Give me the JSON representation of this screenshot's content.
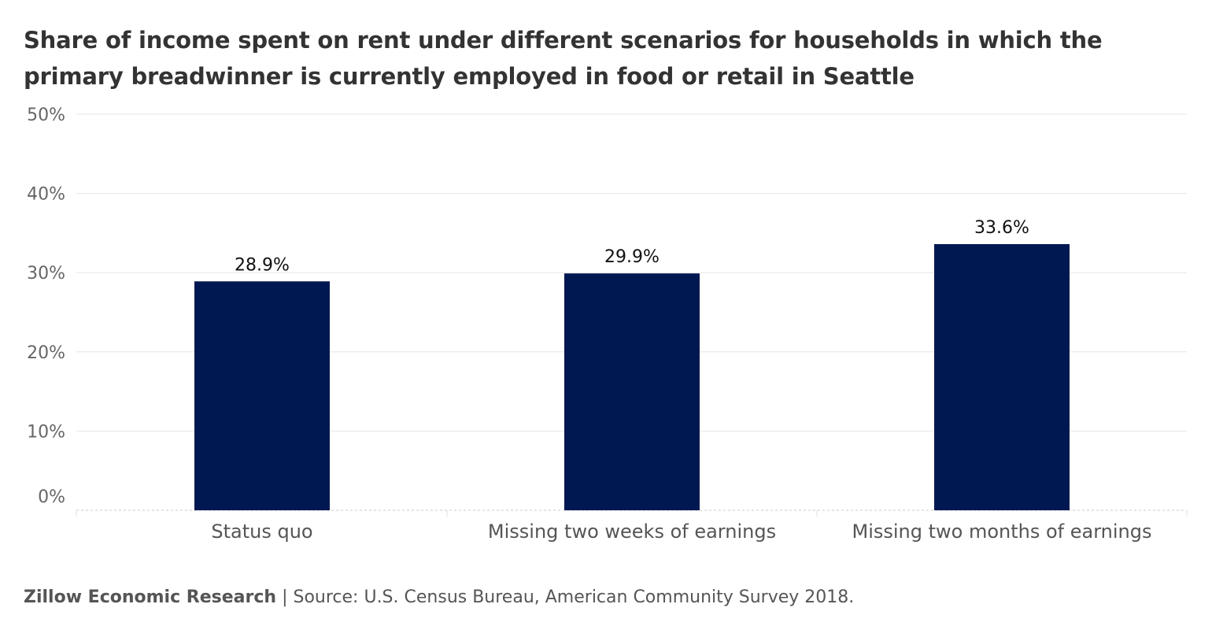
{
  "chart_data": {
    "type": "bar",
    "title": "Share of income spent on rent under different scenarios for households in which the primary breadwinner is currently employed in food or retail in Seattle",
    "categories": [
      "Status quo",
      "Missing two weeks of earnings",
      "Missing two months of earnings"
    ],
    "values": [
      28.9,
      29.9,
      33.6
    ],
    "data_labels": [
      "28.9%",
      "29.9%",
      "33.6%"
    ],
    "y_ticks": [
      0,
      10,
      20,
      30,
      40,
      50
    ],
    "y_tick_labels": [
      "0%",
      "10%",
      "20%",
      "30%",
      "40%",
      "50%"
    ],
    "ylim": [
      0,
      50
    ],
    "xlabel": "",
    "ylabel": "",
    "grid": true,
    "legend": "none",
    "bar_color": "#001851"
  },
  "footer": {
    "org": "Zillow Economic Research",
    "separator": "|",
    "source": "Source: U.S. Census Bureau, American Community Survey 2018."
  }
}
